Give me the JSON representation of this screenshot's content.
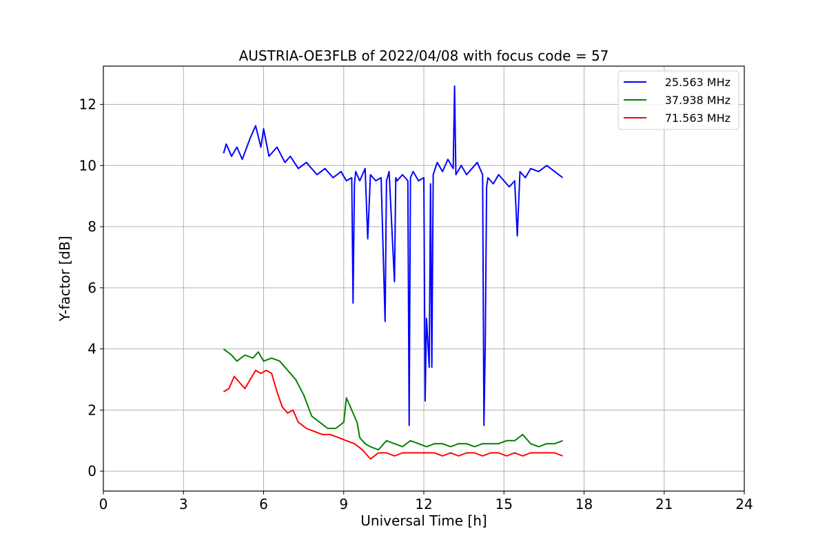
{
  "chart_data": {
    "type": "line",
    "title": "AUSTRIA-OE3FLB of 2022/04/08 with focus code = 57",
    "xlabel": "Universal Time [h]",
    "ylabel": "Y-factor [dB]",
    "xlim": [
      0,
      24
    ],
    "ylim": [
      -0.65,
      13.25
    ],
    "xticks": [
      0,
      3,
      6,
      9,
      12,
      15,
      18,
      21,
      24
    ],
    "yticks": [
      0,
      2,
      4,
      6,
      8,
      10,
      12
    ],
    "grid": true,
    "legend_position": "top-right",
    "series": [
      {
        "name": "25.563 MHz",
        "color": "#0000ff",
        "x": [
          4.5,
          4.6,
          4.8,
          5.0,
          5.2,
          5.5,
          5.7,
          5.9,
          6.0,
          6.2,
          6.5,
          6.8,
          7.0,
          7.3,
          7.6,
          8.0,
          8.3,
          8.6,
          8.9,
          9.1,
          9.3,
          9.35,
          9.4,
          9.45,
          9.6,
          9.8,
          9.9,
          10.0,
          10.2,
          10.4,
          10.55,
          10.6,
          10.7,
          10.9,
          10.95,
          11.0,
          11.2,
          11.4,
          11.45,
          11.5,
          11.6,
          11.8,
          12.0,
          12.05,
          12.1,
          12.2,
          12.25,
          12.3,
          12.35,
          12.5,
          12.7,
          12.9,
          13.1,
          13.15,
          13.2,
          13.4,
          13.6,
          13.8,
          14.0,
          14.2,
          14.25,
          14.3,
          14.35,
          14.4,
          14.6,
          14.8,
          15.0,
          15.2,
          15.4,
          15.5,
          15.6,
          15.8,
          16.0,
          16.3,
          16.6,
          16.9,
          17.2
        ],
        "values": [
          10.4,
          10.7,
          10.3,
          10.6,
          10.2,
          10.9,
          11.3,
          10.6,
          11.2,
          10.3,
          10.6,
          10.1,
          10.3,
          9.9,
          10.1,
          9.7,
          9.9,
          9.6,
          9.8,
          9.5,
          9.6,
          5.5,
          9.4,
          9.8,
          9.5,
          9.9,
          7.6,
          9.7,
          9.5,
          9.6,
          4.9,
          9.5,
          9.8,
          6.2,
          9.6,
          9.5,
          9.7,
          9.5,
          1.5,
          9.6,
          9.8,
          9.5,
          9.6,
          2.3,
          5.0,
          3.4,
          9.4,
          3.4,
          9.7,
          10.1,
          9.8,
          10.2,
          9.9,
          12.6,
          9.7,
          10.0,
          9.7,
          9.9,
          10.1,
          9.7,
          1.5,
          4.1,
          9.3,
          9.6,
          9.4,
          9.7,
          9.5,
          9.3,
          9.5,
          7.7,
          9.8,
          9.6,
          9.9,
          9.8,
          10.0,
          9.8,
          9.6
        ]
      },
      {
        "name": "37.938 MHz",
        "color": "#008000",
        "x": [
          4.5,
          4.8,
          5.0,
          5.3,
          5.6,
          5.8,
          6.0,
          6.3,
          6.6,
          6.9,
          7.2,
          7.5,
          7.8,
          8.1,
          8.4,
          8.7,
          9.0,
          9.1,
          9.3,
          9.5,
          9.6,
          9.8,
          10.0,
          10.3,
          10.6,
          10.9,
          11.2,
          11.5,
          11.8,
          12.1,
          12.4,
          12.7,
          13.0,
          13.3,
          13.6,
          13.9,
          14.2,
          14.5,
          14.8,
          15.1,
          15.4,
          15.7,
          16.0,
          16.3,
          16.6,
          16.9,
          17.2
        ],
        "values": [
          4.0,
          3.8,
          3.6,
          3.8,
          3.7,
          3.9,
          3.6,
          3.7,
          3.6,
          3.3,
          3.0,
          2.5,
          1.8,
          1.6,
          1.4,
          1.4,
          1.6,
          2.4,
          2.0,
          1.6,
          1.1,
          0.9,
          0.8,
          0.7,
          1.0,
          0.9,
          0.8,
          1.0,
          0.9,
          0.8,
          0.9,
          0.9,
          0.8,
          0.9,
          0.9,
          0.8,
          0.9,
          0.9,
          0.9,
          1.0,
          1.0,
          1.2,
          0.9,
          0.8,
          0.9,
          0.9,
          1.0
        ]
      },
      {
        "name": "71.563 MHz",
        "color": "#ff0000",
        "x": [
          4.5,
          4.7,
          4.9,
          5.1,
          5.3,
          5.5,
          5.7,
          5.9,
          6.1,
          6.3,
          6.5,
          6.7,
          6.9,
          7.1,
          7.3,
          7.6,
          7.9,
          8.2,
          8.5,
          8.8,
          9.1,
          9.4,
          9.7,
          10.0,
          10.3,
          10.6,
          10.9,
          11.2,
          11.5,
          11.8,
          12.1,
          12.4,
          12.7,
          13.0,
          13.3,
          13.6,
          13.9,
          14.2,
          14.5,
          14.8,
          15.1,
          15.4,
          15.7,
          16.0,
          16.3,
          16.6,
          16.9,
          17.2
        ],
        "values": [
          2.6,
          2.7,
          3.1,
          2.9,
          2.7,
          3.0,
          3.3,
          3.2,
          3.3,
          3.2,
          2.6,
          2.1,
          1.9,
          2.0,
          1.6,
          1.4,
          1.3,
          1.2,
          1.2,
          1.1,
          1.0,
          0.9,
          0.7,
          0.4,
          0.6,
          0.6,
          0.5,
          0.6,
          0.6,
          0.6,
          0.6,
          0.6,
          0.5,
          0.6,
          0.5,
          0.6,
          0.6,
          0.5,
          0.6,
          0.6,
          0.5,
          0.6,
          0.5,
          0.6,
          0.6,
          0.6,
          0.6,
          0.5
        ]
      }
    ]
  }
}
